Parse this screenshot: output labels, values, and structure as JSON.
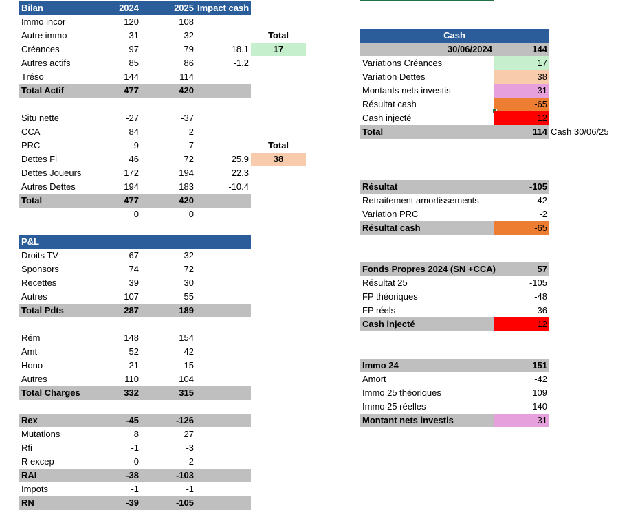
{
  "bilan": {
    "header": {
      "title": "Bilan",
      "y2024": "2024",
      "y2025": "2025",
      "impact": "Impact cash"
    },
    "actif": [
      {
        "label": "Immo incor",
        "v2024": "120",
        "v2025": "108",
        "impact": ""
      },
      {
        "label": "Autre immo",
        "v2024": "31",
        "v2025": "32",
        "impact": ""
      },
      {
        "label": "Créances",
        "v2024": "97",
        "v2025": "79",
        "impact": "18.1"
      },
      {
        "label": "Autres actifs",
        "v2024": "85",
        "v2025": "86",
        "impact": "-1.2"
      },
      {
        "label": "Tréso",
        "v2024": "144",
        "v2025": "114",
        "impact": ""
      }
    ],
    "total_actif": {
      "label": "Total Actif",
      "v2024": "477",
      "v2025": "420"
    },
    "total_box_1": {
      "label": "Total",
      "value": "17"
    },
    "passif": [
      {
        "label": "Situ nette",
        "v2024": "-27",
        "v2025": "-37",
        "impact": ""
      },
      {
        "label": "CCA",
        "v2024": "84",
        "v2025": "2",
        "impact": ""
      },
      {
        "label": "PRC",
        "v2024": "9",
        "v2025": "7",
        "impact": ""
      },
      {
        "label": "Dettes Fi",
        "v2024": "46",
        "v2025": "72",
        "impact": "25.9"
      },
      {
        "label": "Dettes Joueurs",
        "v2024": "172",
        "v2025": "194",
        "impact": "22.3"
      },
      {
        "label": "Autres Dettes",
        "v2024": "194",
        "v2025": "183",
        "impact": "-10.4"
      }
    ],
    "total_passif": {
      "label": "Total",
      "v2024": "477",
      "v2025": "420"
    },
    "check": {
      "v2024": "0",
      "v2025": "0"
    },
    "total_box_2": {
      "label": "Total",
      "value": "38"
    }
  },
  "pl": {
    "header": {
      "title": "P&L"
    },
    "produits": [
      {
        "label": "Droits TV",
        "v2024": "67",
        "v2025": "32"
      },
      {
        "label": "Sponsors",
        "v2024": "74",
        "v2025": "72"
      },
      {
        "label": "Recettes",
        "v2024": "39",
        "v2025": "30"
      },
      {
        "label": "Autres",
        "v2024": "107",
        "v2025": "55"
      }
    ],
    "total_produits": {
      "label": "Total Pdts",
      "v2024": "287",
      "v2025": "189"
    },
    "charges": [
      {
        "label": "Rém",
        "v2024": "148",
        "v2025": "154"
      },
      {
        "label": "Amt",
        "v2024": "52",
        "v2025": "42"
      },
      {
        "label": "Hono",
        "v2024": "21",
        "v2025": "15"
      },
      {
        "label": "Autres",
        "v2024": "110",
        "v2025": "104"
      }
    ],
    "total_charges": {
      "label": "Total Charges",
      "v2024": "332",
      "v2025": "315"
    },
    "rex": {
      "label": "Rex",
      "v2024": "-45",
      "v2025": "-126"
    },
    "rex_items": [
      {
        "label": "Mutations",
        "v2024": "8",
        "v2025": "27"
      },
      {
        "label": "Rfi",
        "v2024": "-1",
        "v2025": "-3"
      },
      {
        "label": "R excep",
        "v2024": "0",
        "v2025": "-2"
      }
    ],
    "rai": {
      "label": "RAI",
      "v2024": "-38",
      "v2025": "-103"
    },
    "impots": {
      "label": "Impots",
      "v2024": "-1",
      "v2025": "-1"
    },
    "rn": {
      "label": "RN",
      "v2024": "-39",
      "v2025": "-105"
    }
  },
  "cash": {
    "header": {
      "title": "Cash",
      "date": "30/06/2024",
      "value": "144"
    },
    "rows": [
      {
        "label": "Variations Créances",
        "value": "17"
      },
      {
        "label": "Variation Dettes",
        "value": "38"
      },
      {
        "label": "Montants nets investis",
        "value": "-31"
      },
      {
        "label": "Résultat cash",
        "value": "-65"
      },
      {
        "label": "Cash injecté",
        "value": "12"
      }
    ],
    "total": {
      "label": "Total",
      "value": "114",
      "note": "Cash 30/06/25"
    }
  },
  "resultat": {
    "header": {
      "label": "Résultat",
      "value": "-105"
    },
    "rows": [
      {
        "label": "Retraitement amortissements",
        "value": "42"
      },
      {
        "label": "Variation PRC",
        "value": "-2"
      }
    ],
    "total": {
      "label": "Résultat cash",
      "value": "-65"
    }
  },
  "fonds_propres": {
    "header": {
      "label": "Fonds Propres 2024 (SN +CCA)",
      "value": "57"
    },
    "rows": [
      {
        "label": "Résultat 25",
        "value": "-105"
      },
      {
        "label": "FP théoriques",
        "value": "-48"
      },
      {
        "label": "FP réels",
        "value": "-36"
      }
    ],
    "total": {
      "label": "Cash injecté",
      "value": "12"
    }
  },
  "immo": {
    "header": {
      "label": "Immo 24",
      "value": "151"
    },
    "rows": [
      {
        "label": "Amort",
        "value": "-42"
      },
      {
        "label": "Immo 25 théoriques",
        "value": "109"
      },
      {
        "label": "Immo 25 réelles",
        "value": "140"
      }
    ],
    "total": {
      "label": "Montant nets investis",
      "value": "31"
    }
  },
  "colors": {
    "header_blue": "#2a5d99",
    "total_grey": "#bfbfbf",
    "green": "#c6efce",
    "peach": "#f8cbad",
    "pink": "#e6a0dc",
    "orange": "#ed7d31",
    "red": "#ff0000",
    "selection": "#217346"
  }
}
